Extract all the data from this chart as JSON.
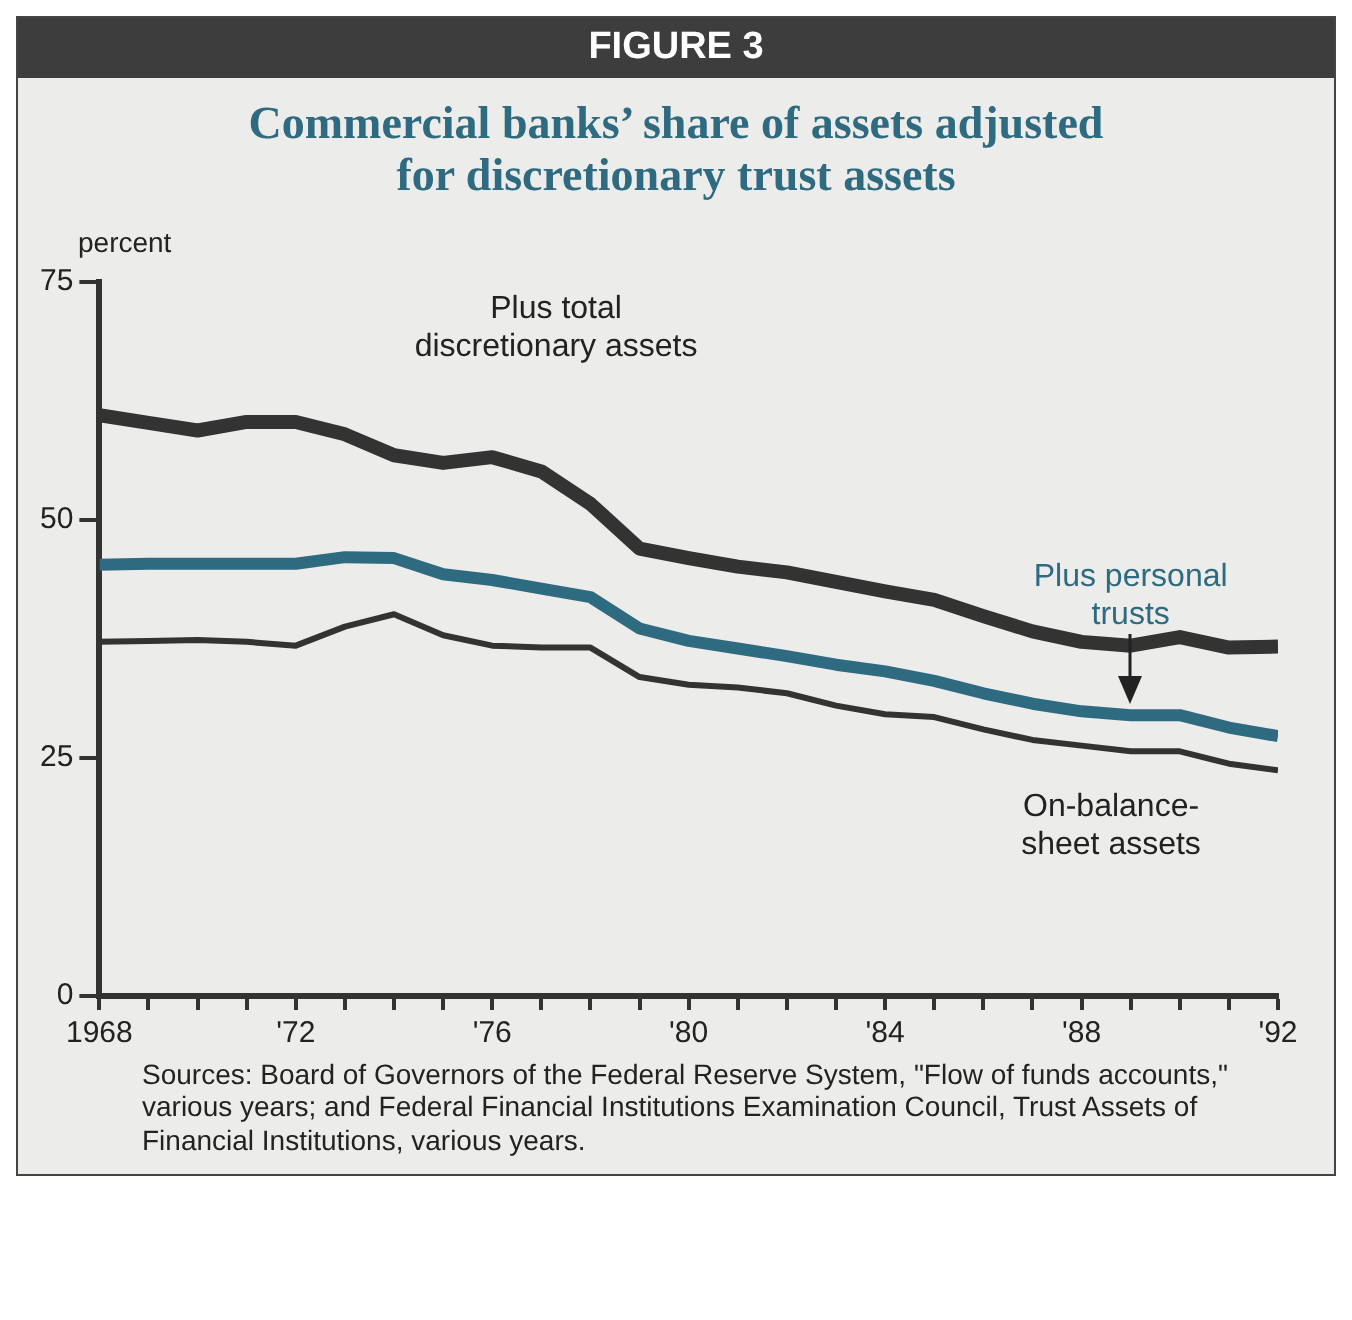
{
  "chart_data": {
    "type": "line",
    "subtitle": "FIGURE 3",
    "title": "Commercial banks’ share of assets adjusted for discretionary trust assets",
    "ylabel": "percent",
    "x": [
      1968,
      1969,
      1970,
      1971,
      1972,
      1973,
      1974,
      1975,
      1976,
      1977,
      1978,
      1979,
      1980,
      1981,
      1982,
      1983,
      1984,
      1985,
      1986,
      1987,
      1988,
      1989,
      1990,
      1991,
      1992
    ],
    "series": [
      {
        "name": "Plus total discretionary assets",
        "color": "#333333",
        "values": [
          61.0,
          60.2,
          59.4,
          60.3,
          60.3,
          59.0,
          56.8,
          56.0,
          56.6,
          55.1,
          51.7,
          47.0,
          46.0,
          45.1,
          44.5,
          43.5,
          42.5,
          41.6,
          39.9,
          38.3,
          37.2,
          36.8,
          37.7,
          36.6,
          36.7
        ]
      },
      {
        "name": "Plus personal trusts",
        "color": "#2e6a80",
        "values": [
          45.3,
          45.4,
          45.4,
          45.4,
          45.4,
          46.1,
          46.0,
          44.3,
          43.7,
          42.8,
          41.9,
          38.6,
          37.3,
          36.5,
          35.7,
          34.8,
          34.1,
          33.1,
          31.8,
          30.7,
          29.9,
          29.5,
          29.5,
          28.2,
          27.3
        ]
      },
      {
        "name": "On-balance-sheet assets",
        "color": "#333333",
        "values": [
          37.2,
          37.3,
          37.4,
          37.2,
          36.8,
          38.8,
          40.1,
          37.9,
          36.8,
          36.6,
          36.6,
          33.5,
          32.7,
          32.4,
          31.8,
          30.5,
          29.6,
          29.3,
          28.0,
          26.9,
          26.3,
          25.7,
          25.7,
          24.4,
          23.7
        ]
      }
    ],
    "xlim": [
      1968,
      1992
    ],
    "xticks": [
      {
        "value": 1968,
        "label": "1968"
      },
      {
        "value": 1969,
        "label": null
      },
      {
        "value": 1970,
        "label": null
      },
      {
        "value": 1971,
        "label": null
      },
      {
        "value": 1972,
        "label": "'72"
      },
      {
        "value": 1973,
        "label": null
      },
      {
        "value": 1974,
        "label": null
      },
      {
        "value": 1975,
        "label": null
      },
      {
        "value": 1976,
        "label": "'76"
      },
      {
        "value": 1977,
        "label": null
      },
      {
        "value": 1978,
        "label": null
      },
      {
        "value": 1979,
        "label": null
      },
      {
        "value": 1980,
        "label": "'80"
      },
      {
        "value": 1981,
        "label": null
      },
      {
        "value": 1982,
        "label": null
      },
      {
        "value": 1983,
        "label": null
      },
      {
        "value": 1984,
        "label": "'84"
      },
      {
        "value": 1985,
        "label": null
      },
      {
        "value": 1986,
        "label": null
      },
      {
        "value": 1987,
        "label": null
      },
      {
        "value": 1988,
        "label": "'88"
      },
      {
        "value": 1989,
        "label": null
      },
      {
        "value": 1990,
        "label": null
      },
      {
        "value": 1991,
        "label": null
      },
      {
        "value": 1992,
        "label": "'92"
      }
    ],
    "ylim": [
      0,
      75
    ],
    "yticks": [
      0,
      25,
      50,
      75
    ],
    "grid": false,
    "legend": false,
    "marker": "none",
    "line_style": "solid",
    "annotations": [
      "Sources: Board of Governors of the Federal Reserve System, \"Flow of funds accounts,\" various years; and Federal Financial Institutions Examination Council, Trust Assets of Financial Institutions, various years."
    ]
  }
}
